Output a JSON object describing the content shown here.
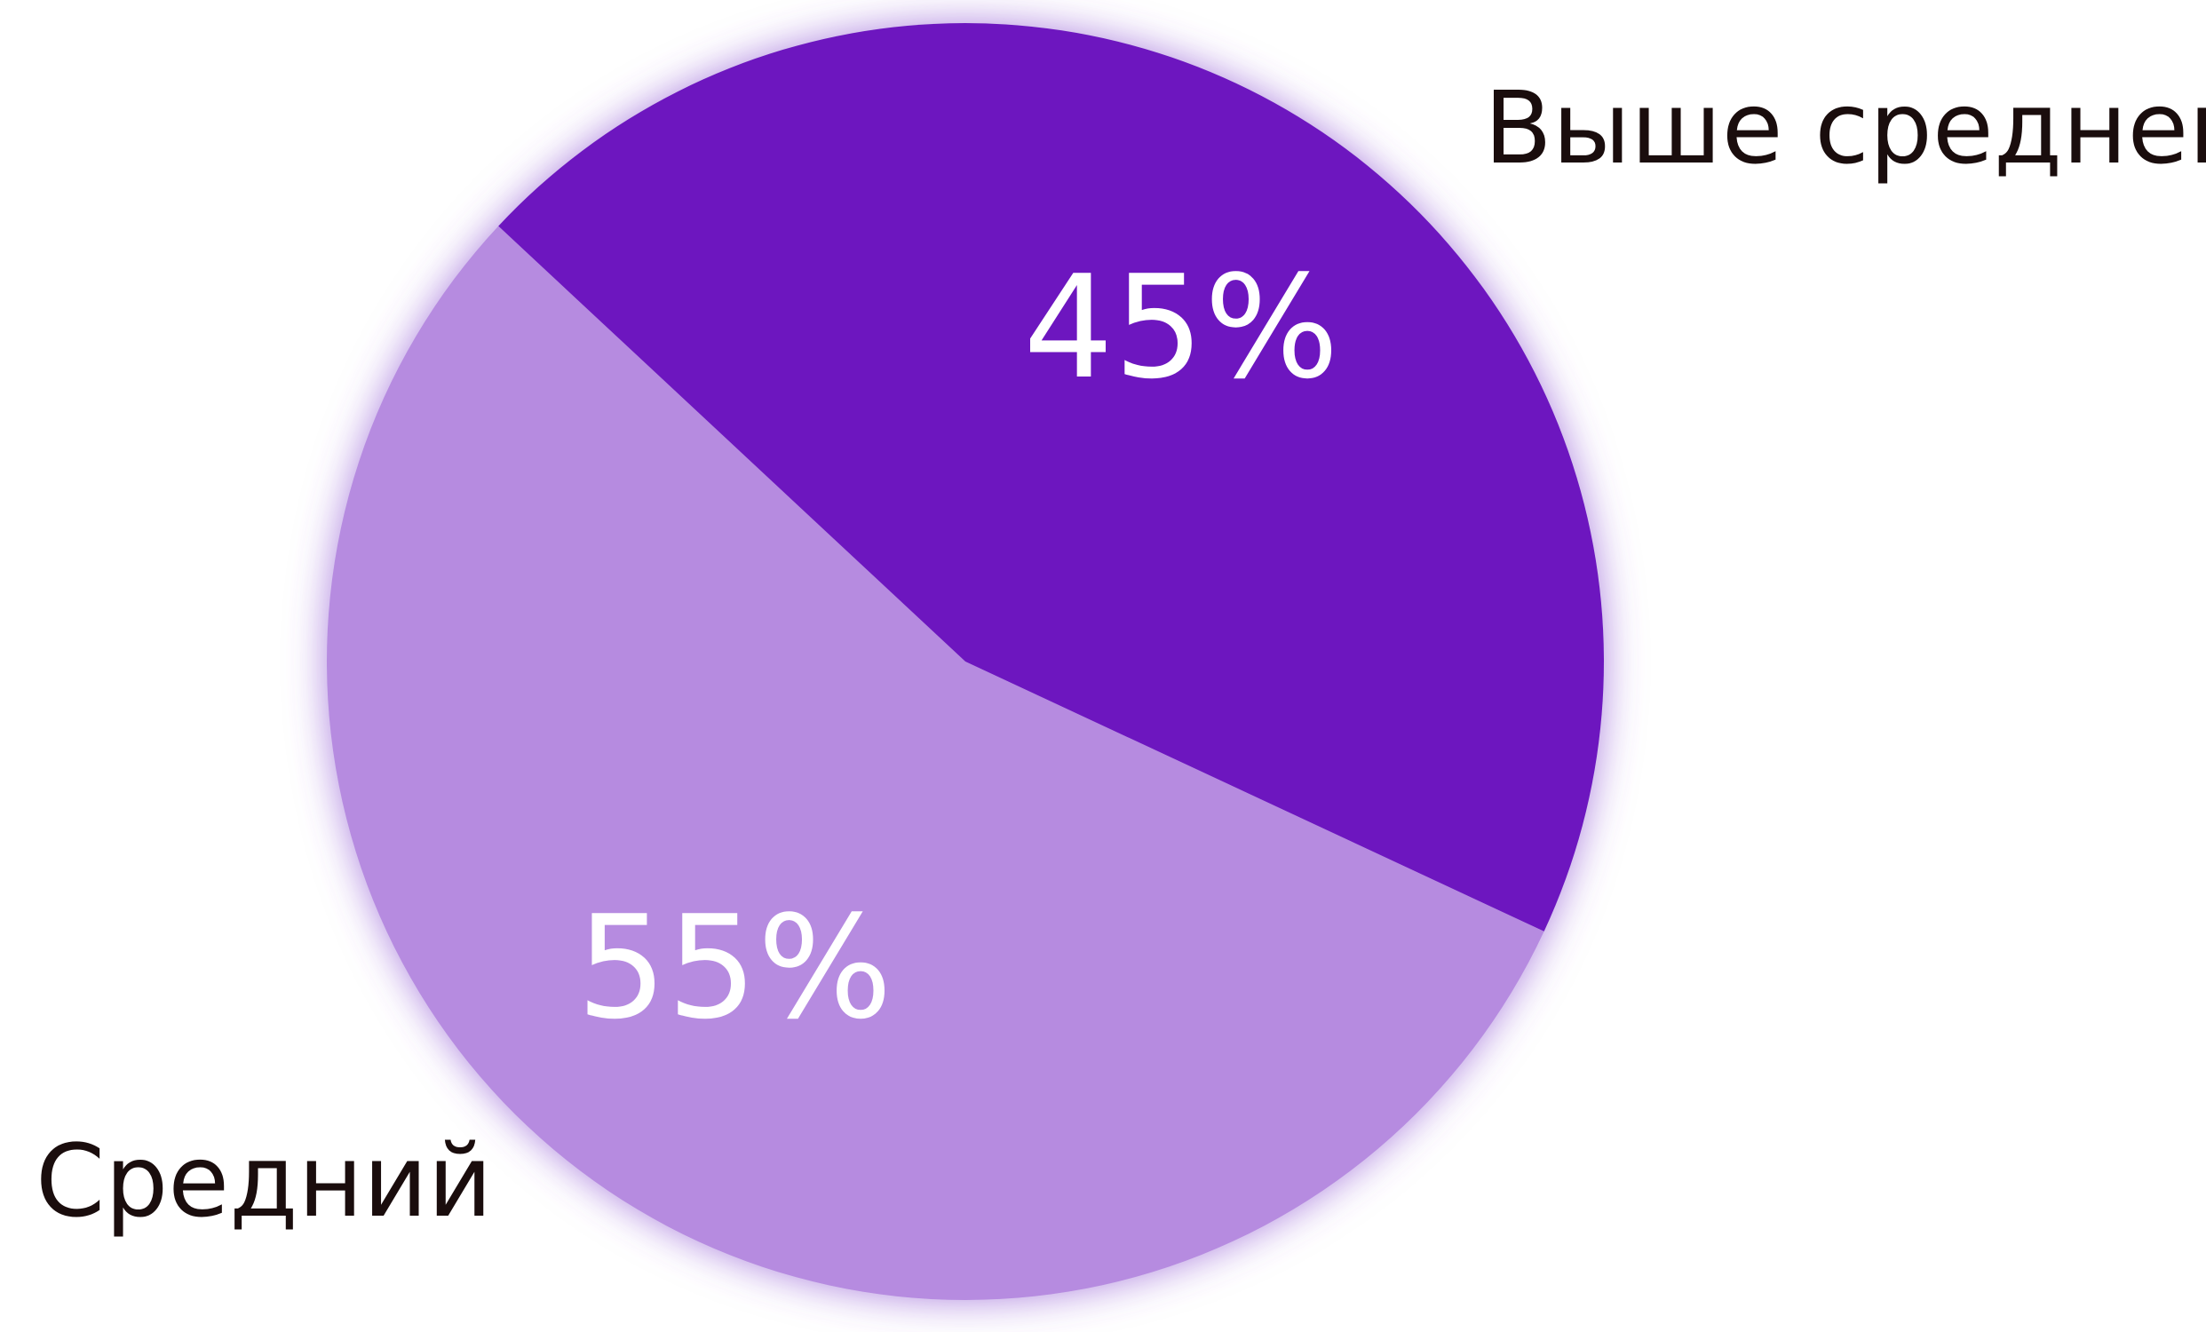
{
  "chart_data": {
    "type": "pie",
    "categories": [
      "Выше среднего",
      "Средний"
    ],
    "values": [
      45,
      55
    ],
    "value_labels": [
      "45%",
      "55%"
    ],
    "colors": [
      "#6d19bf",
      "#b68be0"
    ]
  }
}
